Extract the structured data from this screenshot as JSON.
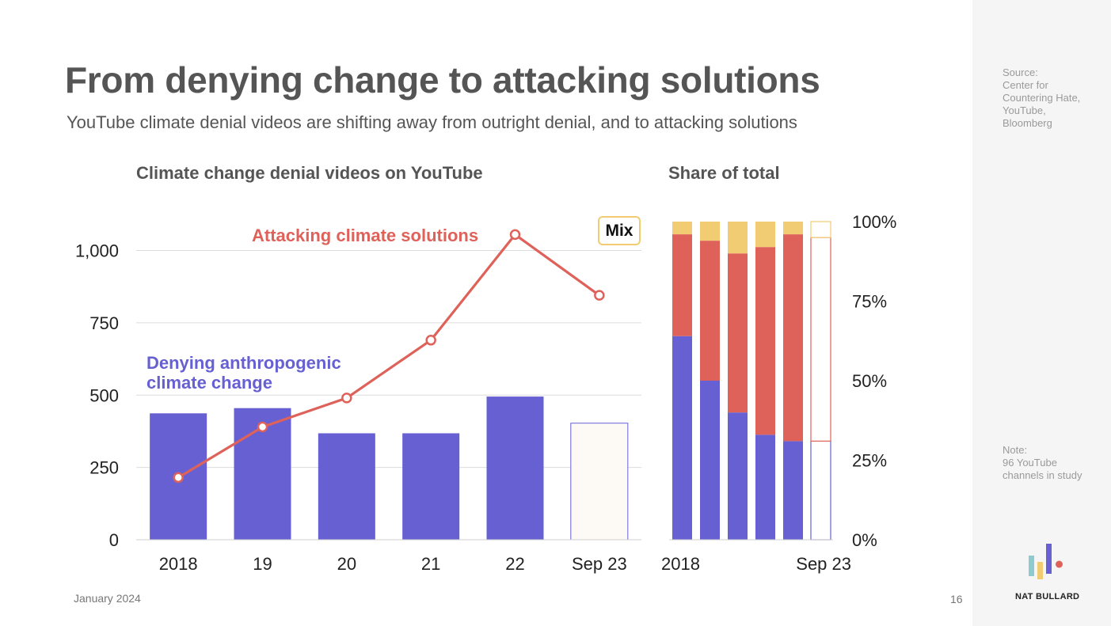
{
  "slide": {
    "title": "From denying change to attacking solutions",
    "subtitle": "YouTube climate denial videos are shifting away from outright denial, and to attacking solutions",
    "date": "January 2024",
    "page": "16",
    "source_label": "Source:",
    "source_text": "Center for Countering Hate, YouTube, Bloomberg",
    "note_label": "Note:",
    "note_text": "96 YouTube channels in study",
    "brand": "NAT BULLARD"
  },
  "colors": {
    "denial": "#6660d2",
    "solutions": "#df625a",
    "mix": "#f2cc72",
    "partial_fill": "#fdfaf6"
  },
  "chart_data": [
    {
      "type": "bar",
      "title": "Climate change denial videos on YouTube",
      "categories": [
        "2018",
        "19",
        "20",
        "21",
        "22",
        "Sep 23"
      ],
      "ylim": [
        0,
        1150
      ],
      "y_ticks": [
        0,
        250,
        500,
        750,
        1000
      ],
      "y_tick_labels": [
        "0",
        "250",
        "500",
        "750",
        "1,000"
      ],
      "grid": true,
      "series": [
        {
          "name": "Denying anthropogenic climate change",
          "kind": "bar",
          "values": [
            437,
            455,
            368,
            368,
            495,
            403
          ],
          "partial_last": true
        },
        {
          "name": "Attacking climate solutions",
          "kind": "line",
          "values": [
            215,
            390,
            490,
            690,
            1055,
            845
          ]
        }
      ],
      "annotations": {
        "denial_label": "Denying anthropogenic\nclimate change",
        "solutions_label": "Attacking climate solutions",
        "mix_legend": "Mix"
      }
    },
    {
      "type": "bar",
      "stacked": true,
      "title": "Share of total",
      "categories": [
        "2018",
        "2019",
        "2020",
        "2021",
        "2022",
        "Sep 23"
      ],
      "x_tick_labels": [
        "2018",
        "Sep 23"
      ],
      "ylim": [
        0,
        100
      ],
      "y_ticks": [
        0,
        25,
        50,
        75,
        100
      ],
      "y_tick_labels": [
        "0%",
        "25%",
        "50%",
        "75%",
        "100%"
      ],
      "series": [
        {
          "name": "Denial",
          "values": [
            64,
            50,
            40,
            33,
            31,
            31
          ]
        },
        {
          "name": "Attacking solutions",
          "values": [
            32,
            44,
            50,
            59,
            65,
            64
          ]
        },
        {
          "name": "Mix",
          "values": [
            4,
            6,
            10,
            8,
            4,
            5
          ]
        }
      ]
    }
  ]
}
